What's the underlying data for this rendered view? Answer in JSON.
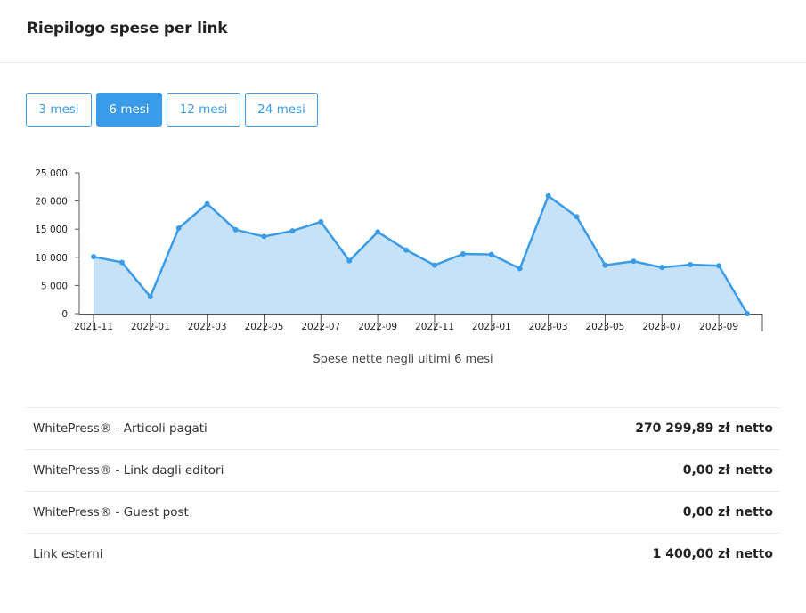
{
  "header": {
    "title": "Riepilogo spese per link"
  },
  "tabs": [
    {
      "label": "3 mesi",
      "active": false
    },
    {
      "label": "6 mesi",
      "active": true
    },
    {
      "label": "12 mesi",
      "active": false
    },
    {
      "label": "24 mesi",
      "active": false
    }
  ],
  "chart_data": {
    "type": "area",
    "caption": "Spese nette negli ultimi 6 mesi",
    "x": [
      "2021-11",
      "2021-12",
      "2022-01",
      "2022-02",
      "2022-03",
      "2022-04",
      "2022-05",
      "2022-06",
      "2022-07",
      "2022-08",
      "2022-09",
      "2022-10",
      "2022-11",
      "2022-12",
      "2023-01",
      "2023-02",
      "2023-03",
      "2023-04",
      "2023-05",
      "2023-06",
      "2023-07",
      "2023-08",
      "2023-09",
      "2023-10"
    ],
    "x_tick_labels": [
      "2021-11",
      "2022-01",
      "2022-03",
      "2022-05",
      "2022-07",
      "2022-09",
      "2022-11",
      "2023-01",
      "2023-03",
      "2023-05",
      "2023-07",
      "2023-09"
    ],
    "values": [
      10100,
      9100,
      3000,
      15200,
      19500,
      14900,
      13700,
      14700,
      16300,
      9400,
      14500,
      11300,
      8600,
      10600,
      10500,
      8000,
      20900,
      17200,
      8600,
      9300,
      8200,
      8700,
      8500,
      0
    ],
    "y_ticks": [
      "0",
      "5 000",
      "10 000",
      "15 000",
      "20 000",
      "25 000"
    ],
    "ylim": [
      0,
      25000
    ],
    "colors": {
      "line": "#3a9be8",
      "fill": "#c6e2f9"
    }
  },
  "summary": [
    {
      "label": "WhitePress® - Articoli pagati",
      "amount": "270 299,89 zł",
      "suffix": "netto"
    },
    {
      "label": "WhitePress® - Link dagli editori",
      "amount": "0,00 zł",
      "suffix": "netto"
    },
    {
      "label": "WhitePress® - Guest post",
      "amount": "0,00 zł",
      "suffix": "netto"
    },
    {
      "label": "Link esterni",
      "amount": "1 400,00 zł",
      "suffix": "netto"
    }
  ]
}
